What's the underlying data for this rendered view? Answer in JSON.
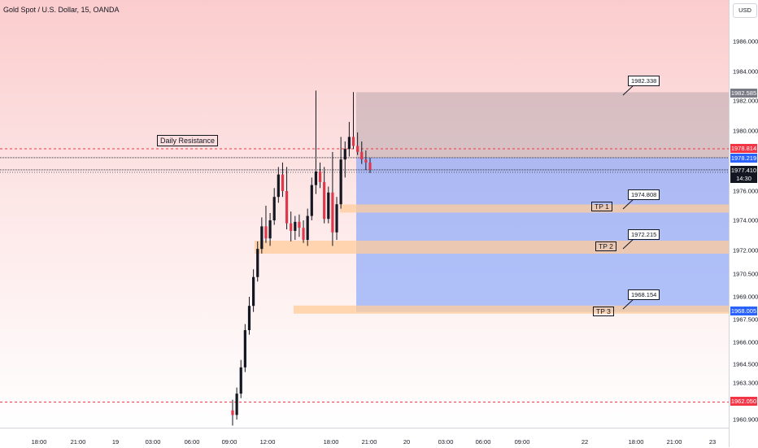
{
  "title": "Gold Spot / U.S. Dollar, 15, OANDA",
  "currency": "USD",
  "price_labels": [
    "1986.000",
    "1984.000",
    "1982.000",
    "1980.000",
    "1976.000",
    "1974.000",
    "1972.000",
    "1970.500",
    "1969.000",
    "1967.500",
    "1966.000",
    "1964.500",
    "1963.300",
    "1960.900"
  ],
  "badges": {
    "target": {
      "value": "1982.585",
      "color": "#787b86"
    },
    "resistance": {
      "value": "1978.814",
      "color": "#f23645"
    },
    "entry": {
      "value": "1978.219",
      "color": "#2962ff"
    },
    "last": {
      "value": "1977.410",
      "countdown": "14:30",
      "color": "#131722"
    },
    "stop": {
      "value": "1968.005",
      "color": "#2962ff"
    },
    "support": {
      "value": "1962.050",
      "color": "#f23645"
    }
  },
  "time_labels": [
    "18:00",
    "21:00",
    "19",
    "03:00",
    "06:00",
    "09:00",
    "12:00",
    "18:00",
    "21:00",
    "20",
    "03:00",
    "06:00",
    "09:00",
    "22",
    "18:00",
    "21:00",
    "23"
  ],
  "annotations": {
    "daily_resistance": "Daily Resistance",
    "tp1": "TP 1",
    "tp2": "TP 2",
    "tp3": "TP 3",
    "callout_top": "1982.338",
    "callout_tp1": "1974.808",
    "callout_tp2": "1972.215",
    "callout_tp3": "1968.154"
  },
  "colors": {
    "up": "#089981",
    "down": "#f23645",
    "candle_body": "#131722",
    "zone_orange": "#ffcc99",
    "position_blue": "#2962ff"
  },
  "chart_data": {
    "type": "candlestick",
    "title": "Gold Spot / U.S. Dollar, 15, OANDA",
    "candles": [
      {
        "o": 1961.5,
        "h": 1962.2,
        "l": 1960.5,
        "c": 1961.2
      },
      {
        "o": 1961.2,
        "h": 1963.0,
        "l": 1960.9,
        "c": 1962.6
      },
      {
        "o": 1962.6,
        "h": 1964.8,
        "l": 1962.3,
        "c": 1964.3
      },
      {
        "o": 1964.3,
        "h": 1967.2,
        "l": 1964.0,
        "c": 1966.8
      },
      {
        "o": 1966.8,
        "h": 1969.0,
        "l": 1966.5,
        "c": 1968.4
      },
      {
        "o": 1968.4,
        "h": 1970.8,
        "l": 1968.0,
        "c": 1970.3
      },
      {
        "o": 1970.3,
        "h": 1972.6,
        "l": 1970.0,
        "c": 1972.1
      },
      {
        "o": 1972.1,
        "h": 1974.2,
        "l": 1971.8,
        "c": 1973.6
      },
      {
        "o": 1973.6,
        "h": 1975.0,
        "l": 1972.5,
        "c": 1972.8
      },
      {
        "o": 1972.8,
        "h": 1974.5,
        "l": 1972.3,
        "c": 1974.0
      },
      {
        "o": 1974.0,
        "h": 1976.2,
        "l": 1973.7,
        "c": 1975.6
      },
      {
        "o": 1975.6,
        "h": 1977.6,
        "l": 1975.2,
        "c": 1977.1
      },
      {
        "o": 1977.1,
        "h": 1977.9,
        "l": 1975.6,
        "c": 1976.0
      },
      {
        "o": 1976.0,
        "h": 1977.6,
        "l": 1973.4,
        "c": 1973.8
      },
      {
        "o": 1973.8,
        "h": 1974.6,
        "l": 1972.6,
        "c": 1973.3
      },
      {
        "o": 1973.3,
        "h": 1974.3,
        "l": 1972.7,
        "c": 1973.9
      },
      {
        "o": 1973.9,
        "h": 1974.4,
        "l": 1972.9,
        "c": 1973.5
      },
      {
        "o": 1973.5,
        "h": 1974.0,
        "l": 1972.5,
        "c": 1972.7
      },
      {
        "o": 1972.7,
        "h": 1974.8,
        "l": 1972.3,
        "c": 1974.3
      },
      {
        "o": 1974.3,
        "h": 1976.9,
        "l": 1974.0,
        "c": 1976.4
      },
      {
        "o": 1976.4,
        "h": 1982.7,
        "l": 1975.8,
        "c": 1977.3
      },
      {
        "o": 1977.3,
        "h": 1977.9,
        "l": 1976.2,
        "c": 1976.6
      },
      {
        "o": 1976.6,
        "h": 1977.6,
        "l": 1973.8,
        "c": 1974.1
      },
      {
        "o": 1974.1,
        "h": 1976.3,
        "l": 1973.8,
        "c": 1975.9
      },
      {
        "o": 1975.9,
        "h": 1978.6,
        "l": 1972.3,
        "c": 1973.2
      },
      {
        "o": 1973.2,
        "h": 1975.6,
        "l": 1972.7,
        "c": 1975.1
      },
      {
        "o": 1975.1,
        "h": 1979.6,
        "l": 1974.8,
        "c": 1978.1
      },
      {
        "o": 1978.1,
        "h": 1979.3,
        "l": 1976.9,
        "c": 1978.8
      },
      {
        "o": 1978.8,
        "h": 1980.6,
        "l": 1978.3,
        "c": 1979.6
      },
      {
        "o": 1979.6,
        "h": 1982.6,
        "l": 1978.8,
        "c": 1979.0
      },
      {
        "o": 1979.0,
        "h": 1979.9,
        "l": 1978.4,
        "c": 1978.6
      },
      {
        "o": 1978.6,
        "h": 1979.3,
        "l": 1977.8,
        "c": 1978.1
      },
      {
        "o": 1978.1,
        "h": 1978.7,
        "l": 1977.4,
        "c": 1977.9
      },
      {
        "o": 1977.9,
        "h": 1978.2,
        "l": 1977.2,
        "c": 1977.41
      }
    ],
    "levels": {
      "daily_resistance": 1978.814,
      "entry": 1978.219,
      "last_price": 1977.41,
      "target_zone_top": 1982.585,
      "tp1": 1974.808,
      "tp2": 1972.215,
      "tp3": 1968.154,
      "stop": 1968.005,
      "support": 1962.05
    }
  }
}
